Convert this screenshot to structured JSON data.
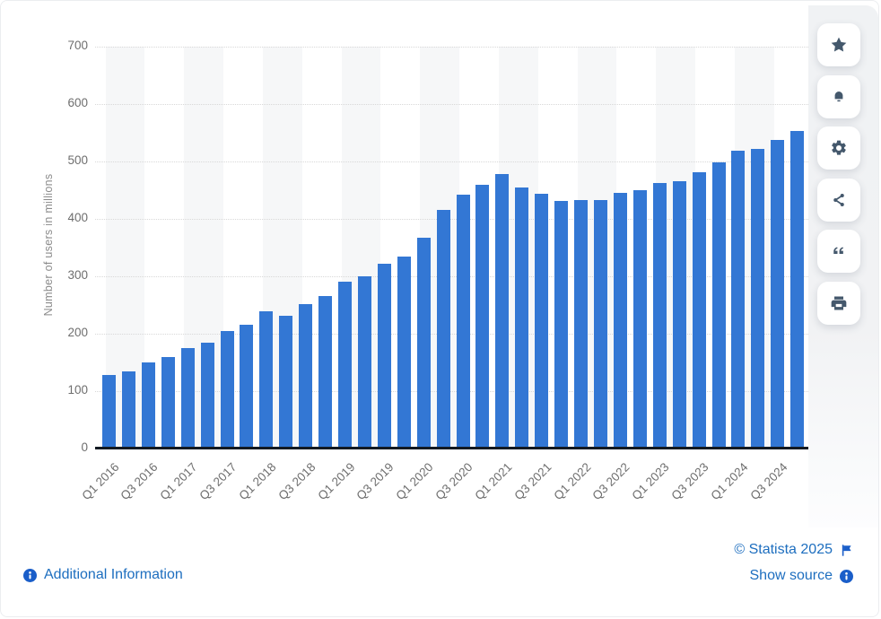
{
  "chart_data": {
    "type": "bar",
    "title": "",
    "ylabel": "Number of users in millions",
    "xlabel": "",
    "ylim": [
      0,
      700
    ],
    "yticks": [
      0,
      100,
      200,
      300,
      400,
      500,
      600,
      700
    ],
    "grid": "horizontal dotted, alternating vertical shading bands",
    "legend": "none",
    "categories": [
      "Q1 2016",
      "Q2 2016",
      "Q3 2016",
      "Q4 2016",
      "Q1 2017",
      "Q2 2017",
      "Q3 2017",
      "Q4 2017",
      "Q1 2018",
      "Q2 2018",
      "Q3 2018",
      "Q4 2018",
      "Q1 2019",
      "Q2 2019",
      "Q3 2019",
      "Q4 2019",
      "Q1 2020",
      "Q2 2020",
      "Q3 2020",
      "Q4 2020",
      "Q1 2021",
      "Q2 2021",
      "Q3 2021",
      "Q4 2021",
      "Q1 2022",
      "Q2 2022",
      "Q3 2022",
      "Q4 2022",
      "Q1 2023",
      "Q2 2023",
      "Q3 2023",
      "Q4 2023",
      "Q1 2024",
      "Q2 2024",
      "Q3 2024",
      "Q4 2024"
    ],
    "values": [
      128,
      135,
      150,
      160,
      175,
      184,
      204,
      216,
      239,
      231,
      251,
      265,
      291,
      300,
      322,
      335,
      367,
      416,
      442,
      459,
      478,
      454,
      444,
      431,
      433,
      433,
      445,
      450,
      463,
      465,
      482,
      498,
      518,
      522,
      537,
      553
    ],
    "xticks_shown": [
      "Q1 2016",
      "Q3 2016",
      "Q1 2017",
      "Q3 2017",
      "Q1 2018",
      "Q3 2018",
      "Q1 2019",
      "Q3 2019",
      "Q1 2020",
      "Q3 2020",
      "Q1 2021",
      "Q3 2021",
      "Q1 2022",
      "Q3 2022",
      "Q1 2023",
      "Q3 2023",
      "Q1 2024",
      "Q3 2024"
    ]
  },
  "toolbar": {
    "buttons": [
      "favorite-star",
      "notification-bell",
      "settings-gear",
      "share",
      "cite-quote",
      "print"
    ]
  },
  "footer": {
    "additional_info_label": "Additional Information",
    "copyright": "© Statista 2025",
    "show_source_label": "Show source"
  },
  "colors": {
    "bar": "#3377d4",
    "band": "#f6f7f8",
    "grid": "#d8d8d8",
    "axis": "#131a22",
    "tick_text": "#6e6e6e",
    "axis_title_text": "#8c8c8c",
    "panel": "#f0f2f4",
    "icon": "#44586c",
    "link": "#1d6ebf",
    "footer_icon": "#1a5ec9"
  }
}
